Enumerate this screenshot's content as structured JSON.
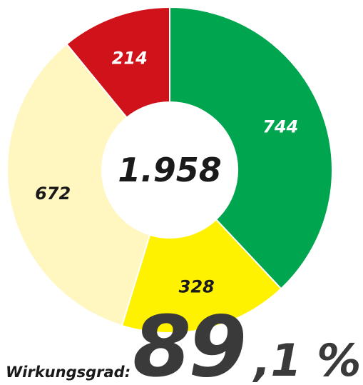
{
  "chart_data": {
    "type": "donut",
    "values": [
      744,
      328,
      672,
      214
    ],
    "colors": [
      "#00a64f",
      "#fff200",
      "#fff6c0",
      "#d0121b"
    ],
    "total": {
      "value": 1958,
      "label": "1.958"
    },
    "efficiency": {
      "label": "Wirkungsgrad:",
      "value": 89.1,
      "value_label_parts": [
        "89",
        ",1 %"
      ]
    }
  }
}
